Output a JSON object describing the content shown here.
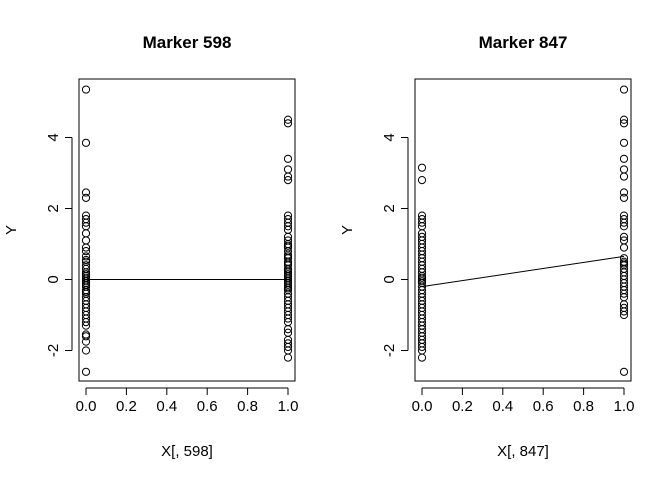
{
  "chart_data": [
    {
      "type": "scatter",
      "title": "Marker 598",
      "xlabel": "X[, 598]",
      "ylabel": "Y",
      "xlim": [
        0,
        1
      ],
      "ylim": [
        -2.6,
        5.35
      ],
      "xticks": [
        "0.0",
        "0.2",
        "0.4",
        "0.6",
        "0.8",
        "1.0"
      ],
      "yticks": [
        "-2",
        "0",
        "2",
        "4"
      ],
      "points": [
        {
          "x": 0,
          "y": [
            5.35,
            3.85,
            2.45,
            2.3,
            1.8,
            1.7,
            1.6,
            1.5,
            1.3,
            1.1,
            0.9,
            0.8,
            0.65,
            0.55,
            0.5,
            0.4,
            0.3,
            0.2,
            0.15,
            0.1,
            0.05,
            0.0,
            -0.05,
            -0.1,
            -0.15,
            -0.2,
            -0.3,
            -0.35,
            -0.4,
            -0.5,
            -0.6,
            -0.7,
            -0.8,
            -0.9,
            -1.0,
            -1.1,
            -1.2,
            -1.3,
            -1.55,
            -1.6,
            -1.75,
            -2.0,
            -2.6
          ]
        },
        {
          "x": 1,
          "y": [
            4.5,
            4.4,
            3.4,
            3.1,
            2.9,
            2.8,
            1.8,
            1.7,
            1.6,
            1.5,
            1.4,
            1.2,
            1.1,
            1.0,
            0.95,
            0.9,
            0.8,
            0.7,
            0.65,
            0.6,
            0.5,
            0.45,
            0.4,
            0.3,
            0.25,
            0.2,
            0.15,
            0.1,
            0.05,
            0.0,
            -0.05,
            -0.1,
            -0.15,
            -0.2,
            -0.25,
            -0.3,
            -0.4,
            -0.5,
            -0.6,
            -0.7,
            -0.8,
            -0.9,
            -1.0,
            -1.1,
            -1.2,
            -1.4,
            -1.5,
            -1.7,
            -1.8,
            -1.9,
            -2.0,
            -2.2
          ]
        }
      ],
      "fit_line": {
        "x": [
          0,
          1
        ],
        "y": [
          0.0,
          0.0
        ]
      }
    },
    {
      "type": "scatter",
      "title": "Marker 847",
      "xlabel": "X[, 847]",
      "ylabel": "Y",
      "xlim": [
        0,
        1
      ],
      "ylim": [
        -2.6,
        5.35
      ],
      "xticks": [
        "0.0",
        "0.2",
        "0.4",
        "0.6",
        "0.8",
        "1.0"
      ],
      "yticks": [
        "-2",
        "0",
        "2",
        "4"
      ],
      "points": [
        {
          "x": 0,
          "y": [
            3.15,
            2.8,
            1.8,
            1.7,
            1.6,
            1.5,
            1.3,
            1.2,
            1.1,
            1.0,
            0.9,
            0.8,
            0.7,
            0.6,
            0.5,
            0.4,
            0.3,
            0.2,
            0.1,
            0.05,
            0.0,
            -0.05,
            -0.1,
            -0.2,
            -0.3,
            -0.4,
            -0.5,
            -0.6,
            -0.7,
            -0.8,
            -0.9,
            -1.0,
            -1.1,
            -1.2,
            -1.3,
            -1.4,
            -1.5,
            -1.6,
            -1.7,
            -1.8,
            -1.9,
            -2.0,
            -2.2
          ]
        },
        {
          "x": 1,
          "y": [
            5.35,
            4.5,
            4.4,
            3.85,
            3.4,
            3.1,
            2.9,
            2.45,
            2.3,
            1.8,
            1.7,
            1.6,
            1.5,
            1.2,
            1.1,
            0.9,
            0.6,
            0.5,
            0.45,
            0.4,
            0.3,
            0.2,
            0.1,
            0.0,
            -0.1,
            -0.2,
            -0.3,
            -0.4,
            -0.5,
            -0.7,
            -0.8,
            -0.9,
            -1.0,
            -2.6
          ]
        }
      ],
      "fit_line": {
        "x": [
          0,
          1
        ],
        "y": [
          -0.2,
          0.65
        ]
      }
    }
  ]
}
